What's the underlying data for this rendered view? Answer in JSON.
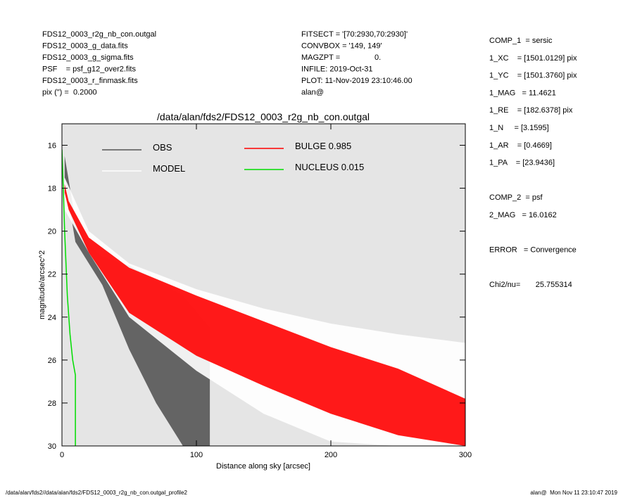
{
  "header": {
    "left": [
      "FDS12_0003_r2g_nb_con.outgal",
      "FDS12_0003_g_data.fits",
      "FDS12_0003_g_sigma.fits",
      "PSF    = psf_g12_over2.fits",
      "FDS12_0003_r_finmask.fits",
      "pix (\") =  0.2000"
    ],
    "middle": [
      "FITSECT = '[70:2930,70:2930]'",
      "CONVBOX = '149, 149'",
      "MAGZPT =                0.",
      "INFILE: 2019-Oct-31",
      "PLOT: 11-Nov-2019 23:10:46.00",
      "alan@"
    ],
    "right": [
      "COMP_1  = sersic",
      "1_XC    = [1501.0129] pix",
      "1_YC    = [1501.3760] pix",
      "1_MAG   = 11.4621",
      "1_RE    = [182.6378] pix",
      "1_N     = [3.1595]",
      "1_AR    = [0.4669]",
      "1_PA    = [23.9436]",
      "",
      "COMP_2  = psf",
      "2_MAG   = 16.0162",
      "",
      "ERROR   = Convergence",
      "",
      "Chi2/nu=       25.755314"
    ]
  },
  "footer": {
    "left": "/data/alan/fds2//data/alan/fds2/FDS12_0003_r2g_nb_con.outgal_profile2",
    "right": "alan@  Mon Nov 11 23:10:47 2019"
  },
  "chart_data": {
    "type": "band",
    "title": "/data/alan/fds2/FDS12_0003_r2g_nb_con.outgal",
    "x_label": "Distance along sky [arcsec]",
    "y_label": "magnitude/arcsec^2",
    "xlim": [
      0,
      300
    ],
    "xticks": [
      0,
      100,
      200,
      300
    ],
    "ylim": [
      30,
      15
    ],
    "yticks": [
      16,
      18,
      20,
      22,
      24,
      26,
      28,
      30
    ],
    "series": [
      {
        "name": "OBS",
        "color": "#555555",
        "x": [
          2,
          10,
          20,
          30,
          50,
          70,
          90,
          110
        ],
        "values": [
          16.5,
          19.5,
          20.6,
          21.2,
          21.6,
          22.3,
          23.0,
          24.5
        ],
        "values_faint": [
          17.5,
          20.5,
          21.5,
          22.5,
          25.5,
          28,
          30,
          30
        ]
      },
      {
        "name": "MODEL",
        "color": "#ffffff",
        "x": [
          2,
          20,
          50,
          100,
          150,
          200,
          250,
          300
        ],
        "values": [
          17.5,
          20,
          21.5,
          22.7,
          23.6,
          24.3,
          24.8,
          25.2
        ],
        "values_faint": [
          19,
          21,
          24,
          26.5,
          28.5,
          29.8,
          30,
          30
        ]
      },
      {
        "name": "BULGE 0.985",
        "color": "#ff0000",
        "x": [
          2,
          5,
          20,
          50,
          100,
          150,
          200,
          250,
          300
        ],
        "values": [
          17.8,
          18.6,
          20.3,
          21.7,
          23.0,
          24.2,
          25.4,
          26.4,
          27.8
        ],
        "values_faint": [
          18.2,
          19,
          21,
          23.8,
          25.8,
          27.2,
          28.5,
          29.5,
          30
        ]
      },
      {
        "name": "NUCLEUS 0.015",
        "color": "#00dd00",
        "line": true,
        "x": [
          0,
          1,
          2,
          4,
          6,
          8,
          10,
          10
        ],
        "values": [
          16.2,
          18,
          20,
          23,
          24.8,
          26,
          26.7,
          30
        ]
      }
    ]
  }
}
